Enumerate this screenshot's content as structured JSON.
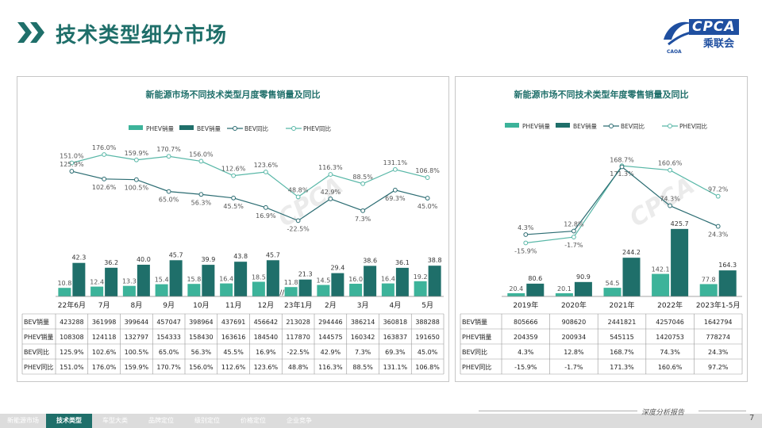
{
  "header": {
    "title": "技术类型细分市场"
  },
  "logo": {
    "brand": "CPCA",
    "subtitle": "乘联会",
    "small": "CAOA"
  },
  "colors": {
    "phev": "#3cb39a",
    "bev": "#1f6f6a",
    "bev_yoy": "#2b6c72",
    "phev_yoy": "#58b7a7",
    "title": "#1f6f6a"
  },
  "chart_data": [
    {
      "type": "bar",
      "title": "新能源市场不同技术类型月度零售销量及同比",
      "legend": [
        "PHEV销量",
        "BEV销量",
        "BEV同比",
        "PHEV同比"
      ],
      "categories": [
        "22年6月",
        "7月",
        "8月",
        "9月",
        "10月",
        "11月",
        "12月",
        "23年1月",
        "2月",
        "3月",
        "4月",
        "5月"
      ],
      "series": [
        {
          "name": "PHEV销量",
          "values": [
            10.8,
            12.4,
            13.3,
            15.4,
            15.8,
            16.4,
            18.5,
            11.8,
            14.5,
            16.0,
            16.4,
            19.2
          ],
          "labels": [
            "10.8",
            "12.4",
            "13.3",
            "15.4",
            "15.8",
            "16.4",
            "18.5",
            "11.8",
            "14.5",
            "16.0",
            "16.4",
            "19.2"
          ]
        },
        {
          "name": "BEV销量",
          "values": [
            42.3,
            36.2,
            40.0,
            45.7,
            39.9,
            43.8,
            45.7,
            21.3,
            29.4,
            38.6,
            36.1,
            38.8
          ],
          "labels": [
            "42.3",
            "36.2",
            "40.0",
            "45.7",
            "39.9",
            "43.8",
            "45.7",
            "21.3",
            "29.4",
            "38.6",
            "36.1",
            "38.8"
          ]
        },
        {
          "name": "BEV同比",
          "values": [
            125.9,
            102.6,
            100.5,
            65.0,
            56.3,
            45.5,
            16.9,
            -22.5,
            42.9,
            7.3,
            69.3,
            45.0
          ],
          "labels": [
            "125.9%",
            "102.6%",
            "100.5%",
            "65.0%",
            "56.3%",
            "45.5%",
            "16.9%",
            "-22.5%",
            "42.9%",
            "7.3%",
            "69.3%",
            "45.0%"
          ]
        },
        {
          "name": "PHEV同比",
          "values": [
            151.0,
            176.0,
            159.9,
            170.7,
            156.0,
            112.6,
            123.6,
            48.8,
            116.3,
            88.5,
            131.1,
            106.8
          ],
          "labels": [
            "151.0%",
            "176.0%",
            "159.9%",
            "170.7%",
            "156.0%",
            "112.6%",
            "123.6%",
            "48.8%",
            "116.3%",
            "88.5%",
            "131.1%",
            "106.8%"
          ]
        }
      ],
      "table": {
        "rows": [
          {
            "label": "BEV销量",
            "cells": [
              "423288",
              "361998",
              "399644",
              "457047",
              "398964",
              "437691",
              "456642",
              "213028",
              "294446",
              "386214",
              "360818",
              "388288"
            ]
          },
          {
            "label": "PHEV销量",
            "cells": [
              "108308",
              "124118",
              "132797",
              "154333",
              "158430",
              "163616",
              "184540",
              "117870",
              "144575",
              "160342",
              "163837",
              "191650"
            ]
          },
          {
            "label": "BEV同比",
            "cells": [
              "125.9%",
              "102.6%",
              "100.5%",
              "65.0%",
              "56.3%",
              "45.5%",
              "16.9%",
              "-22.5%",
              "42.9%",
              "7.3%",
              "69.3%",
              "45.0%"
            ]
          },
          {
            "label": "PHEV同比",
            "cells": [
              "151.0%",
              "176.0%",
              "159.9%",
              "170.7%",
              "156.0%",
              "112.6%",
              "123.6%",
              "48.8%",
              "116.3%",
              "88.5%",
              "131.1%",
              "106.8%"
            ]
          }
        ]
      }
    },
    {
      "type": "bar",
      "title": "新能源市场不同技术类型年度零售销量及同比",
      "legend": [
        "PHEV销量",
        "BEV销量",
        "BEV同比",
        "PHEV同比"
      ],
      "categories": [
        "2019年",
        "2020年",
        "2021年",
        "2022年",
        "2023年1-5月"
      ],
      "series": [
        {
          "name": "PHEV销量",
          "values": [
            20.4,
            20.1,
            54.5,
            142.1,
            77.8
          ],
          "labels": [
            "20.4",
            "20.1",
            "54.5",
            "142.1",
            "77.8"
          ]
        },
        {
          "name": "BEV销量",
          "values": [
            80.6,
            90.9,
            244.2,
            425.7,
            164.3
          ],
          "labels": [
            "80.6",
            "90.9",
            "244.2",
            "425.7",
            "164.3"
          ]
        },
        {
          "name": "BEV同比",
          "values": [
            4.3,
            12.8,
            168.7,
            74.3,
            24.3
          ],
          "labels": [
            "4.3%",
            "12.8%",
            "168.7%",
            "74.3%",
            "24.3%"
          ]
        },
        {
          "name": "PHEV同比",
          "values": [
            -15.9,
            -1.7,
            171.3,
            160.6,
            97.2
          ],
          "labels": [
            "-15.9%",
            "-1.7%",
            "171.3%",
            "160.6%",
            "97.2%"
          ]
        }
      ],
      "table": {
        "rows": [
          {
            "label": "BEV销量",
            "cells": [
              "805666",
              "908620",
              "2441821",
              "4257046",
              "1642794"
            ]
          },
          {
            "label": "PHEV销量",
            "cells": [
              "204359",
              "200934",
              "545115",
              "1420753",
              "778274"
            ]
          },
          {
            "label": "BEV同比",
            "cells": [
              "4.3%",
              "12.8%",
              "168.7%",
              "74.3%",
              "24.3%"
            ]
          },
          {
            "label": "PHEV同比",
            "cells": [
              "-15.9%",
              "-1.7%",
              "171.3%",
              "160.6%",
              "97.2%"
            ]
          }
        ]
      }
    }
  ],
  "footer": {
    "tabs": [
      "新能源市场",
      "技术类型",
      "车型大类",
      "品牌定位",
      "级别定位",
      "价格定位",
      "企业竞争"
    ],
    "active_index": 1,
    "slogan": "深度分析报告",
    "page": "7"
  }
}
